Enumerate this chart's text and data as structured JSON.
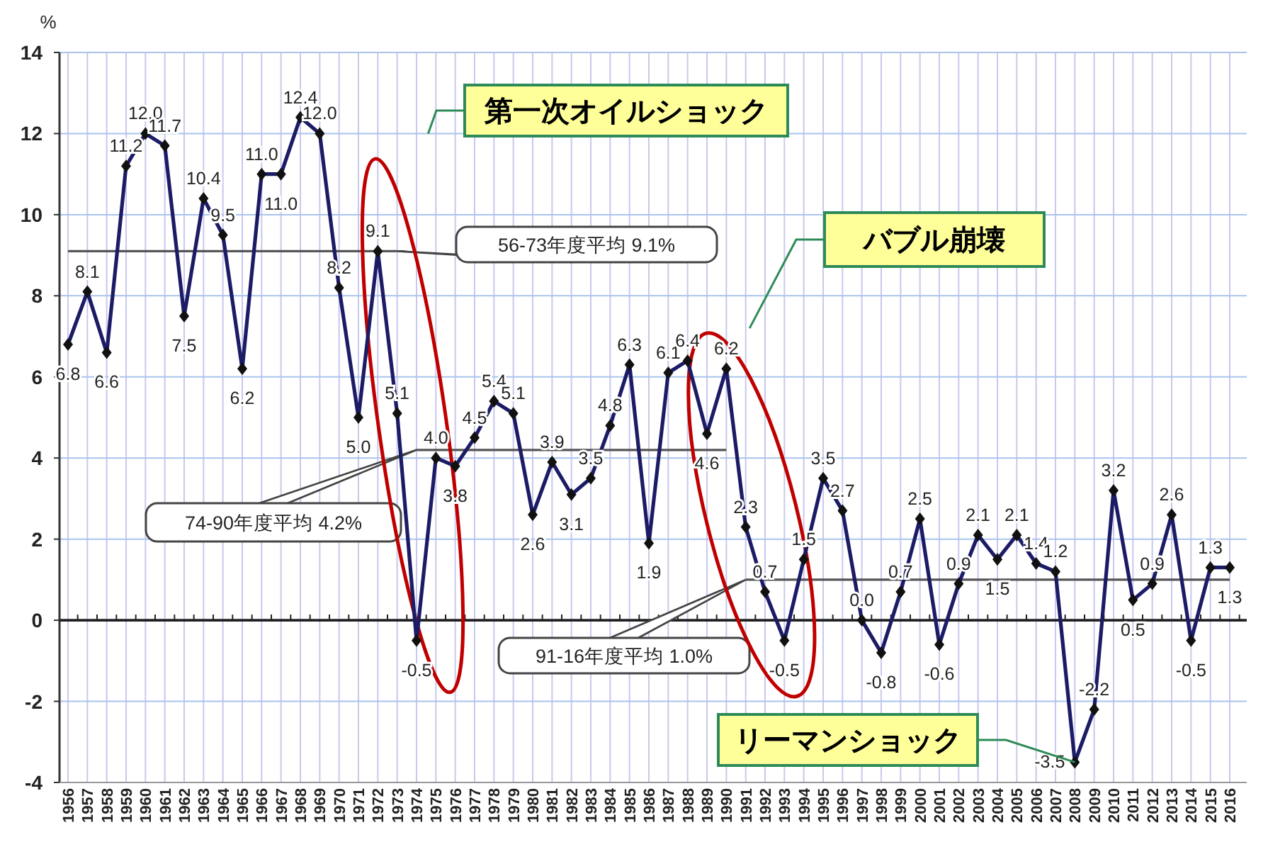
{
  "chart_data": {
    "type": "line",
    "ylabel": "%",
    "categories": [
      "1956",
      "1957",
      "1958",
      "1959",
      "1960",
      "1961",
      "1962",
      "1963",
      "1964",
      "1965",
      "1966",
      "1967",
      "1968",
      "1969",
      "1970",
      "1971",
      "1972",
      "1973",
      "1974",
      "1975",
      "1976",
      "1977",
      "1978",
      "1979",
      "1980",
      "1981",
      "1982",
      "1983",
      "1984",
      "1985",
      "1986",
      "1987",
      "1988",
      "1989",
      "1990",
      "1991",
      "1992",
      "1993",
      "1994",
      "1995",
      "1996",
      "1997",
      "1998",
      "1999",
      "2000",
      "2001",
      "2002",
      "2003",
      "2004",
      "2005",
      "2006",
      "2007",
      "2008",
      "2009",
      "2010",
      "2011",
      "2012",
      "2013",
      "2014",
      "2015",
      "2016"
    ],
    "series": [
      {
        "color": "#1c1c66",
        "values": [
          6.8,
          8.1,
          6.6,
          11.2,
          12.0,
          11.7,
          7.5,
          10.4,
          9.5,
          6.2,
          11.0,
          11.0,
          12.4,
          12.0,
          8.2,
          5.0,
          9.1,
          5.1,
          -0.5,
          4.0,
          3.8,
          4.5,
          5.4,
          5.1,
          2.6,
          3.9,
          3.1,
          3.5,
          4.8,
          6.3,
          1.9,
          6.1,
          6.4,
          4.6,
          6.2,
          2.3,
          0.7,
          -0.5,
          1.5,
          3.5,
          2.7,
          0.0,
          -0.8,
          0.7,
          2.5,
          -0.6,
          0.9,
          2.1,
          1.5,
          2.1,
          1.4,
          1.2,
          -3.5,
          -2.2,
          3.2,
          0.5,
          0.9,
          2.6,
          -0.5,
          1.3,
          1.3
        ],
        "value_labels": [
          "6.8",
          "8.1",
          "6.6",
          "11.2",
          "12.0",
          "11.7",
          "7.5",
          "10.4",
          "9.5",
          "6.2",
          "11.0",
          "11.0",
          "12.4",
          "12.0",
          "8.2",
          "5.0",
          "9.1",
          "5.1",
          "-0.5",
          "4.0",
          "3.8",
          "4.5",
          "5.4",
          "5.1",
          "2.6",
          "3.9",
          "3.1",
          "3.5",
          "4.8",
          "6.3",
          "1.9",
          "6.1",
          "6.4",
          "4.6",
          "6.2",
          "2.3",
          "0.7",
          "-0.5",
          "1.5",
          "3.5",
          "2.7",
          "0.0",
          "-0.8",
          "0.7",
          "2.5",
          "-0.6",
          "0.9",
          "2.1",
          "1.5",
          "2.1",
          "1.4",
          "1.2",
          "-3.5",
          "-2.2",
          "3.2",
          "0.5",
          "0.9",
          "2.6",
          "-0.5",
          "1.3",
          "1.3"
        ]
      }
    ],
    "ref_lines": [
      {
        "axis": "y",
        "value": 9.1,
        "label": "56-73年度平均 9.1%",
        "color": "#555555"
      },
      {
        "axis": "y",
        "value": 4.2,
        "label": "74-90年度平均 4.2%",
        "color": "#555555"
      },
      {
        "axis": "y",
        "value": 1.0,
        "label": "91-16年度平均 1.0%",
        "color": "#555555"
      }
    ],
    "ylim": [
      -4,
      14
    ],
    "yticks": [
      -4,
      -2,
      0,
      2,
      4,
      6,
      8,
      10,
      12,
      14
    ],
    "grid": true,
    "marker": "diamond",
    "annotations": [
      "第一次オイルショック",
      "バブル崩壊",
      {
        "text": "リーマンショック",
        "x": "2008",
        "y": -3.5
      }
    ]
  }
}
